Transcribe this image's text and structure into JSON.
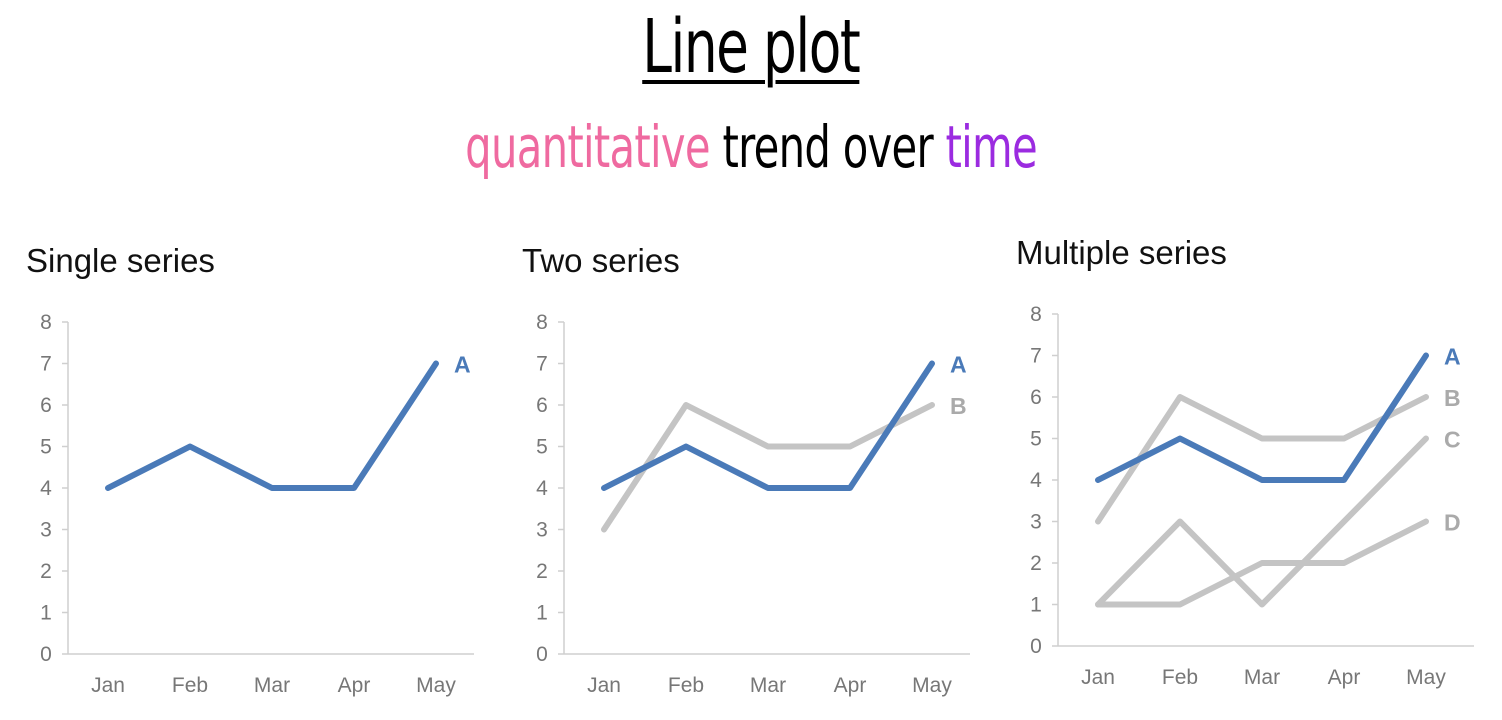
{
  "header": {
    "title": "Line plot",
    "subtitle_part1": "quantitative",
    "subtitle_part2": " trend over ",
    "subtitle_part3": "time"
  },
  "colors": {
    "subtitle_quantitative": "#ef6aa0",
    "subtitle_time": "#9b2be0",
    "highlight_series": "#4a7ab8",
    "other_series": "#c4c4c4",
    "axis": "#cfcfcf",
    "tick_text": "#777777"
  },
  "chart_data": [
    {
      "type": "line",
      "title": "Single series",
      "categories": [
        "Jan",
        "Feb",
        "Mar",
        "Apr",
        "May"
      ],
      "ylim": [
        0,
        8
      ],
      "yticks": [
        0,
        1,
        2,
        3,
        4,
        5,
        6,
        7,
        8
      ],
      "grid": false,
      "series": [
        {
          "name": "A",
          "values": [
            4,
            5,
            4,
            4,
            7
          ],
          "color": "#4a7ab8"
        }
      ]
    },
    {
      "type": "line",
      "title": "Two series",
      "categories": [
        "Jan",
        "Feb",
        "Mar",
        "Apr",
        "May"
      ],
      "ylim": [
        0,
        8
      ],
      "yticks": [
        0,
        1,
        2,
        3,
        4,
        5,
        6,
        7,
        8
      ],
      "grid": false,
      "series": [
        {
          "name": "B",
          "values": [
            3,
            6,
            5,
            5,
            6
          ],
          "color": "#c4c4c4"
        },
        {
          "name": "A",
          "values": [
            4,
            5,
            4,
            4,
            7
          ],
          "color": "#4a7ab8"
        }
      ]
    },
    {
      "type": "line",
      "title": "Multiple series",
      "categories": [
        "Jan",
        "Feb",
        "Mar",
        "Apr",
        "May"
      ],
      "ylim": [
        0,
        8
      ],
      "yticks": [
        0,
        1,
        2,
        3,
        4,
        5,
        6,
        7,
        8
      ],
      "grid": false,
      "series": [
        {
          "name": "D",
          "values": [
            1,
            1,
            2,
            2,
            3
          ],
          "color": "#c4c4c4"
        },
        {
          "name": "C",
          "values": [
            1,
            3,
            1,
            3,
            5
          ],
          "color": "#c4c4c4"
        },
        {
          "name": "B",
          "values": [
            3,
            6,
            5,
            5,
            6
          ],
          "color": "#c4c4c4"
        },
        {
          "name": "A",
          "values": [
            4,
            5,
            4,
            4,
            7
          ],
          "color": "#4a7ab8"
        }
      ]
    }
  ]
}
